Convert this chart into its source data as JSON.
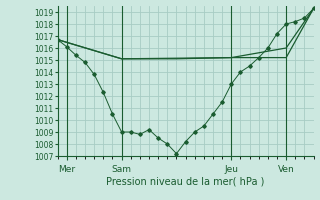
{
  "background_color": "#cce8e0",
  "grid_color": "#a8ccc4",
  "line_color": "#1a5c30",
  "title": "Pression niveau de la mer( hPa )",
  "ylim": [
    1007,
    1019.5
  ],
  "yticks": [
    1007,
    1008,
    1009,
    1010,
    1011,
    1012,
    1013,
    1014,
    1015,
    1016,
    1017,
    1018,
    1019
  ],
  "xlim": [
    0,
    28
  ],
  "day_labels": [
    "Mer",
    "Sam",
    "Jeu",
    "Ven"
  ],
  "day_positions": [
    1,
    7,
    19,
    25
  ],
  "vline_positions": [
    1,
    7,
    19,
    25
  ],
  "line1_x": [
    0,
    1,
    2,
    3,
    4,
    5,
    6,
    7,
    8,
    9,
    10,
    11,
    12,
    13,
    14,
    15,
    16,
    17,
    18,
    19,
    20,
    21,
    22,
    23,
    24,
    25,
    26,
    27,
    28
  ],
  "line1_y": [
    1016.7,
    1016.1,
    1015.4,
    1014.8,
    1013.8,
    1012.3,
    1010.5,
    1009.0,
    1009.0,
    1008.8,
    1009.2,
    1008.5,
    1008.0,
    1007.2,
    1008.2,
    1009.0,
    1009.5,
    1010.5,
    1011.5,
    1013.0,
    1014.0,
    1014.5,
    1015.2,
    1016.0,
    1017.2,
    1018.0,
    1018.2,
    1018.5,
    1019.3
  ],
  "line2_x": [
    0,
    7,
    19,
    25,
    28
  ],
  "line2_y": [
    1016.7,
    1015.1,
    1015.2,
    1016.0,
    1019.3
  ],
  "line3_x": [
    0,
    7,
    13,
    19,
    25,
    28
  ],
  "line3_y": [
    1016.7,
    1015.1,
    1015.1,
    1015.2,
    1015.2,
    1019.3
  ],
  "title_fontsize": 7,
  "tick_fontsize": 5.5,
  "xtick_fontsize": 6.5
}
